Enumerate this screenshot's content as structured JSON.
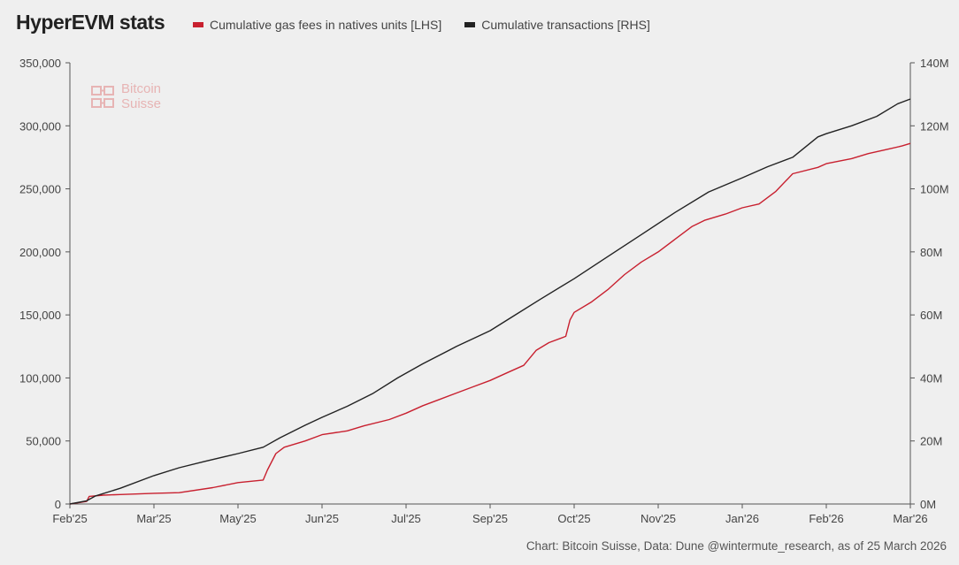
{
  "title": "HyperEVM stats",
  "legend": {
    "gas": {
      "label": "Cumulative gas fees in natives units [LHS]",
      "color": "#c8202f"
    },
    "tx": {
      "label": "Cumulative transactions [RHS]",
      "color": "#222222"
    }
  },
  "watermark": {
    "line1": "Bitcoin",
    "line2": "Suisse"
  },
  "source": "Chart: Bitcoin Suisse, Data: Dune @wintermute_research, as of 25 March 2026",
  "chart_data": {
    "type": "line",
    "title": "HyperEVM stats",
    "x_labels": [
      "Feb'25",
      "Mar'25",
      "May'25",
      "Jun'25",
      "Jul'25",
      "Sep'25",
      "Oct'25",
      "Nov'25",
      "Jan'26",
      "Feb'26",
      "Mar'26"
    ],
    "left_axis": {
      "ylim": [
        0,
        350000
      ],
      "ticks": [
        "0",
        "50,000",
        "100,000",
        "150,000",
        "200,000",
        "250,000",
        "300,000",
        "350,000"
      ]
    },
    "right_axis": {
      "ylim": [
        0,
        140
      ],
      "ticks": [
        "0M",
        "20M",
        "40M",
        "60M",
        "80M",
        "100M",
        "120M",
        "140M"
      ]
    },
    "x_range": [
      0,
      10
    ],
    "series": [
      {
        "name": "Cumulative gas fees in natives units [LHS]",
        "axis": "left",
        "color": "#c8202f",
        "x": [
          0,
          0.2,
          0.23,
          0.4,
          0.6,
          1.0,
          1.3,
          1.7,
          2.0,
          2.3,
          2.35,
          2.45,
          2.55,
          2.8,
          3.0,
          3.3,
          3.5,
          3.8,
          4.0,
          4.2,
          4.4,
          4.6,
          4.8,
          5.0,
          5.2,
          5.4,
          5.55,
          5.7,
          5.9,
          5.95,
          6.0,
          6.2,
          6.4,
          6.6,
          6.8,
          7.0,
          7.2,
          7.4,
          7.55,
          7.8,
          8.0,
          8.2,
          8.4,
          8.6,
          8.9,
          9.0,
          9.3,
          9.5,
          9.7,
          9.9,
          10.0
        ],
        "values": [
          0,
          2000,
          6000,
          7000,
          7500,
          8500,
          9000,
          13000,
          17000,
          19000,
          27000,
          40000,
          45000,
          50000,
          55000,
          58000,
          62000,
          67000,
          72000,
          78000,
          83000,
          88000,
          93000,
          98000,
          104000,
          110000,
          122000,
          128000,
          133000,
          146000,
          152000,
          160000,
          170000,
          182000,
          192000,
          200000,
          210000,
          220000,
          225000,
          230000,
          235000,
          238000,
          248000,
          262000,
          267000,
          270000,
          274000,
          278000,
          281000,
          284000,
          286000
        ]
      },
      {
        "name": "Cumulative transactions [RHS]",
        "axis": "right",
        "color": "#222222",
        "x": [
          0,
          0.2,
          0.3,
          0.6,
          1.0,
          1.3,
          1.6,
          2.0,
          2.3,
          2.5,
          2.8,
          3.0,
          3.3,
          3.6,
          3.9,
          4.2,
          4.6,
          5.0,
          5.3,
          5.6,
          6.0,
          6.4,
          6.8,
          7.2,
          7.6,
          8.0,
          8.3,
          8.6,
          8.9,
          9.0,
          9.3,
          9.6,
          9.85,
          10.0
        ],
        "values": [
          0,
          1,
          2.5,
          5,
          9,
          11.5,
          13.5,
          16,
          18,
          21,
          25,
          27.5,
          31,
          35,
          40,
          44.5,
          50,
          55,
          60,
          65,
          71.5,
          78.5,
          85.5,
          92.5,
          99,
          103.5,
          107,
          110,
          116.5,
          117.5,
          120,
          123,
          127,
          128.5
        ]
      }
    ]
  }
}
